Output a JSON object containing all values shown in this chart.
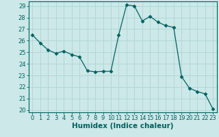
{
  "xlabel": "Humidex (Indice chaleur)",
  "ylabel": "",
  "x": [
    0,
    1,
    2,
    3,
    4,
    5,
    6,
    7,
    8,
    9,
    10,
    11,
    12,
    13,
    14,
    15,
    16,
    17,
    18,
    19,
    20,
    21,
    22,
    23
  ],
  "y": [
    26.5,
    25.8,
    25.2,
    24.9,
    25.1,
    24.8,
    24.6,
    23.4,
    23.3,
    23.35,
    23.35,
    26.5,
    29.1,
    29.0,
    27.7,
    28.1,
    27.6,
    27.3,
    27.15,
    22.9,
    21.9,
    21.6,
    21.4,
    20.1
  ],
  "line_color": "#006060",
  "marker": "D",
  "marker_size": 2.5,
  "bg_color": "#cce8e8",
  "grid_color": "#b0d4d4",
  "ylim": [
    19.8,
    29.4
  ],
  "yticks": [
    20,
    21,
    22,
    23,
    24,
    25,
    26,
    27,
    28,
    29
  ],
  "xticks": [
    0,
    1,
    2,
    3,
    4,
    5,
    6,
    7,
    8,
    9,
    10,
    11,
    12,
    13,
    14,
    15,
    16,
    17,
    18,
    19,
    20,
    21,
    22,
    23
  ],
  "tick_label_fontsize": 6.0,
  "xlabel_fontsize": 7.5
}
